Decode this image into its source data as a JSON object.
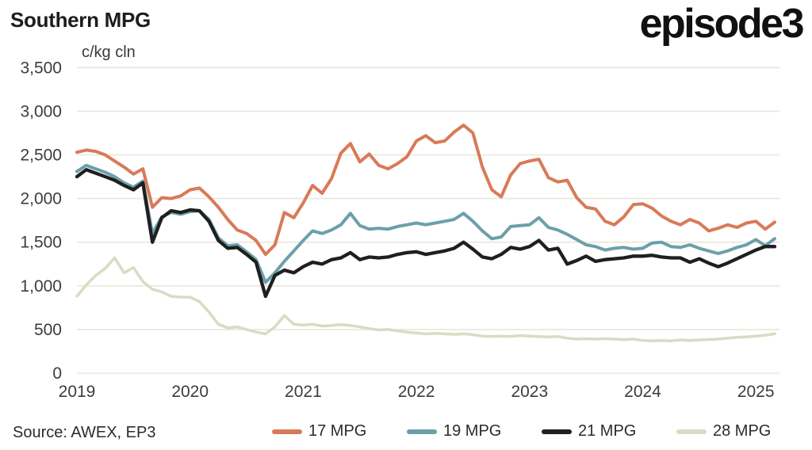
{
  "header": {
    "title": "Southern MPG",
    "unit_label": "c/kg cln",
    "logo_text": "episode3"
  },
  "footer": {
    "source": "Source: AWEX, EP3"
  },
  "colors": {
    "series_17": "#D87A58",
    "series_19": "#6BA0AA",
    "series_21": "#1F1F1F",
    "series_28": "#DBDAC4",
    "gridline": "#E9E7DA",
    "tick_text": "#3C3C3C"
  },
  "chart_data": {
    "type": "line",
    "title": "Southern MPG",
    "ylabel": "c/kg cln",
    "ylim": [
      0,
      3500
    ],
    "grid": "horizontal",
    "legend_position": "bottom",
    "yticks": [
      3500,
      3000,
      2500,
      2000,
      1500,
      1000,
      500,
      0
    ],
    "ytick_labels": [
      "3,500",
      "3,000",
      "2,500",
      "2,000",
      "1,500",
      "1,000",
      "500",
      "0"
    ],
    "xticks": [
      2019,
      2020,
      2021,
      2022,
      2023,
      2024,
      2025
    ],
    "xtick_labels": [
      "2019",
      "2020",
      "2021",
      "2022",
      "2023",
      "2024",
      "2025"
    ],
    "x_unit": "decimal year (monthly samples)",
    "x": [
      2019.0,
      2019.083,
      2019.167,
      2019.25,
      2019.333,
      2019.417,
      2019.5,
      2019.583,
      2019.667,
      2019.75,
      2019.833,
      2019.917,
      2020.0,
      2020.083,
      2020.167,
      2020.25,
      2020.333,
      2020.417,
      2020.5,
      2020.583,
      2020.667,
      2020.75,
      2020.833,
      2020.917,
      2021.0,
      2021.083,
      2021.167,
      2021.25,
      2021.333,
      2021.417,
      2021.5,
      2021.583,
      2021.667,
      2021.75,
      2021.833,
      2021.917,
      2022.0,
      2022.083,
      2022.167,
      2022.25,
      2022.333,
      2022.417,
      2022.5,
      2022.583,
      2022.667,
      2022.75,
      2022.833,
      2022.917,
      2023.0,
      2023.083,
      2023.167,
      2023.25,
      2023.333,
      2023.417,
      2023.5,
      2023.583,
      2023.667,
      2023.75,
      2023.833,
      2023.917,
      2024.0,
      2024.083,
      2024.167,
      2024.25,
      2024.333,
      2024.417,
      2024.5,
      2024.583,
      2024.667,
      2024.75,
      2024.833,
      2024.917,
      2025.0,
      2025.083,
      2025.167
    ],
    "series": [
      {
        "name": "17 MPG",
        "color": "#D87A58",
        "values": [
          2530,
          2555,
          2540,
          2500,
          2430,
          2360,
          2280,
          2340,
          1900,
          2010,
          2000,
          2030,
          2100,
          2120,
          2020,
          1900,
          1760,
          1640,
          1600,
          1520,
          1360,
          1470,
          1840,
          1780,
          1950,
          2150,
          2060,
          2230,
          2520,
          2630,
          2420,
          2510,
          2380,
          2340,
          2400,
          2480,
          2660,
          2720,
          2640,
          2660,
          2760,
          2840,
          2750,
          2360,
          2100,
          2020,
          2270,
          2400,
          2430,
          2450,
          2240,
          2190,
          2210,
          2010,
          1900,
          1880,
          1740,
          1700,
          1790,
          1930,
          1940,
          1890,
          1800,
          1740,
          1700,
          1760,
          1720,
          1630,
          1660,
          1700,
          1670,
          1720,
          1740,
          1650,
          1730
        ]
      },
      {
        "name": "19 MPG",
        "color": "#6BA0AA",
        "values": [
          2310,
          2380,
          2340,
          2300,
          2250,
          2180,
          2130,
          2200,
          1600,
          1790,
          1840,
          1820,
          1850,
          1860,
          1760,
          1550,
          1460,
          1470,
          1390,
          1300,
          1040,
          1150,
          1280,
          1400,
          1520,
          1630,
          1600,
          1640,
          1700,
          1830,
          1690,
          1650,
          1660,
          1650,
          1680,
          1700,
          1720,
          1700,
          1720,
          1740,
          1760,
          1830,
          1740,
          1630,
          1540,
          1560,
          1680,
          1690,
          1700,
          1780,
          1670,
          1640,
          1590,
          1530,
          1470,
          1450,
          1410,
          1430,
          1440,
          1420,
          1430,
          1490,
          1500,
          1450,
          1440,
          1470,
          1430,
          1400,
          1370,
          1400,
          1440,
          1470,
          1530,
          1460,
          1540
        ]
      },
      {
        "name": "21 MPG",
        "color": "#1F1F1F",
        "values": [
          2250,
          2330,
          2290,
          2250,
          2210,
          2150,
          2100,
          2180,
          1500,
          1780,
          1860,
          1840,
          1870,
          1860,
          1740,
          1520,
          1430,
          1440,
          1360,
          1270,
          880,
          1120,
          1180,
          1150,
          1220,
          1270,
          1250,
          1300,
          1320,
          1380,
          1300,
          1330,
          1320,
          1330,
          1360,
          1380,
          1390,
          1360,
          1380,
          1400,
          1430,
          1500,
          1420,
          1330,
          1310,
          1360,
          1440,
          1420,
          1450,
          1520,
          1410,
          1430,
          1250,
          1290,
          1340,
          1280,
          1300,
          1310,
          1320,
          1340,
          1340,
          1350,
          1330,
          1320,
          1320,
          1270,
          1310,
          1260,
          1220,
          1260,
          1310,
          1360,
          1410,
          1450,
          1450
        ]
      },
      {
        "name": "28 MPG",
        "color": "#DBDAC4",
        "values": [
          880,
          1010,
          1120,
          1200,
          1320,
          1150,
          1210,
          1050,
          960,
          930,
          880,
          870,
          870,
          820,
          700,
          560,
          520,
          530,
          500,
          470,
          450,
          530,
          660,
          560,
          550,
          560,
          540,
          545,
          555,
          545,
          530,
          510,
          495,
          500,
          485,
          470,
          460,
          450,
          455,
          450,
          445,
          450,
          440,
          425,
          420,
          425,
          420,
          430,
          425,
          420,
          415,
          420,
          400,
          390,
          395,
          390,
          395,
          390,
          385,
          390,
          375,
          370,
          375,
          370,
          380,
          375,
          380,
          385,
          390,
          400,
          410,
          415,
          425,
          435,
          450
        ]
      }
    ]
  }
}
